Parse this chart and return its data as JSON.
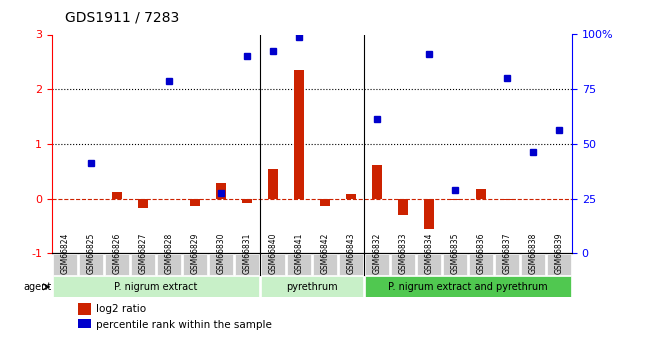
{
  "title": "GDS1911 / 7283",
  "samples": [
    "GSM66824",
    "GSM66825",
    "GSM66826",
    "GSM66827",
    "GSM66828",
    "GSM66829",
    "GSM66830",
    "GSM66831",
    "GSM66840",
    "GSM66841",
    "GSM66842",
    "GSM66843",
    "GSM66832",
    "GSM66833",
    "GSM66834",
    "GSM66835",
    "GSM66836",
    "GSM66837",
    "GSM66838",
    "GSM66839"
  ],
  "log2_ratio": [
    0.0,
    0.0,
    0.12,
    -0.18,
    0.0,
    -0.13,
    0.28,
    -0.08,
    0.55,
    2.35,
    -0.13,
    0.08,
    0.62,
    -0.3,
    -0.55,
    -0.02,
    0.18,
    -0.02,
    0.0,
    0.0
  ],
  "percentile_rank": [
    null,
    0.65,
    null,
    null,
    2.15,
    null,
    0.1,
    2.6,
    2.7,
    2.95,
    null,
    null,
    1.45,
    null,
    2.65,
    0.15,
    null,
    2.2,
    0.85,
    1.25
  ],
  "groups": [
    {
      "label": "P. nigrum extract",
      "start": 0,
      "end": 7,
      "color": "#90ee90"
    },
    {
      "label": "pyrethrum",
      "start": 8,
      "end": 11,
      "color": "#90ee90"
    },
    {
      "label": "P. nigrum extract and pyrethrum",
      "start": 12,
      "end": 19,
      "color": "#32cd32"
    }
  ],
  "ylim_left": [
    -1,
    3
  ],
  "ylim_right": [
    0,
    100
  ],
  "yticks_left": [
    -1,
    0,
    1,
    2,
    3
  ],
  "yticks_right": [
    0,
    25,
    50,
    75,
    100
  ],
  "ytick_labels_right": [
    "0",
    "25",
    "50",
    "75",
    "100%"
  ],
  "bar_color_red": "#cc2200",
  "bar_color_blue": "#0000cc",
  "hline_color": "#cc2200",
  "dotted_line_color": "#000000",
  "bg_color": "#ffffff",
  "plot_bg_color": "#ffffff",
  "tick_label_bg": "#cccccc",
  "group_label_fontsize": 8,
  "title_fontsize": 10,
  "legend_red_label": "log2 ratio",
  "legend_blue_label": "percentile rank within the sample"
}
